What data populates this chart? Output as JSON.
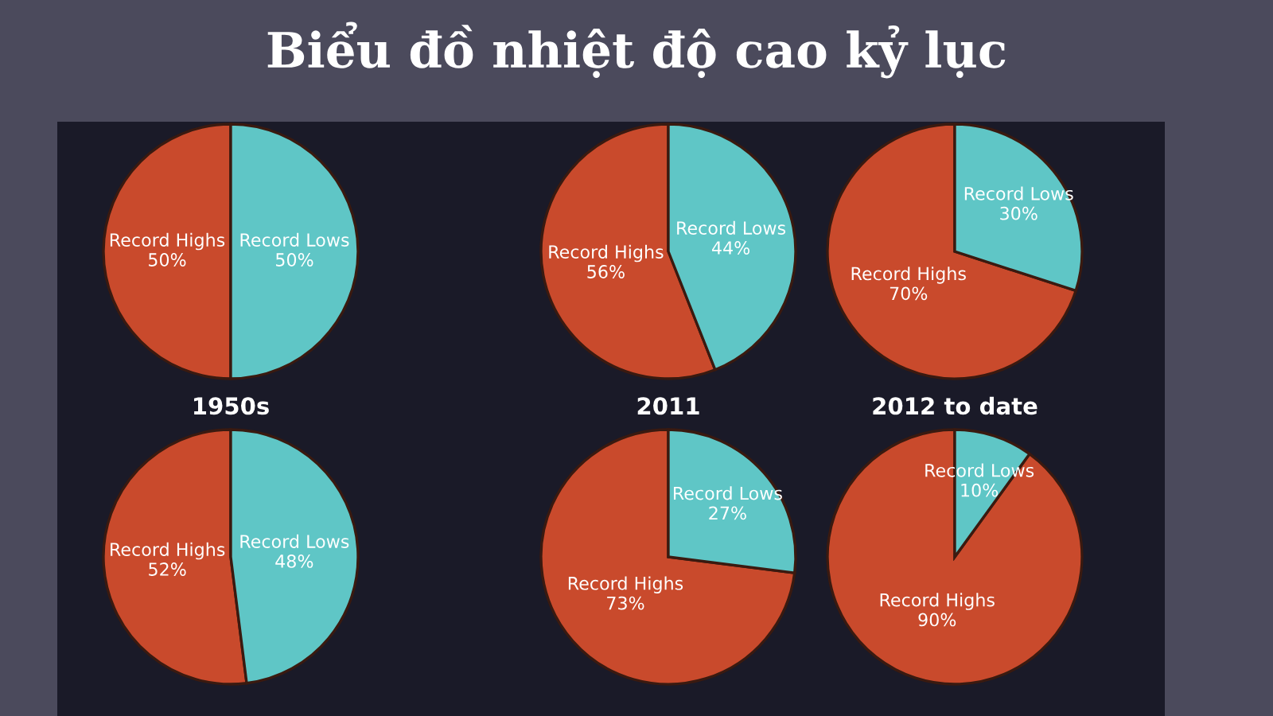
{
  "chart_data": [
    {
      "type": "pie",
      "title": "Biểu đồ nhiệt độ cao kỷ lục",
      "categories": [
        "Record Highs",
        "Record Lows"
      ],
      "values": [
        50,
        50
      ],
      "value_labels": [
        "50%",
        "50%"
      ],
      "colors": [
        "#c94a2c",
        "#5fc6c6"
      ]
    },
    {
      "type": "pie",
      "categories": [
        "Record Highs",
        "Record Lows"
      ],
      "values": [
        56,
        44
      ],
      "value_labels": [
        "56%",
        "44%"
      ],
      "colors": [
        "#c94a2c",
        "#5fc6c6"
      ]
    },
    {
      "type": "pie",
      "categories": [
        "Record Highs",
        "Record Lows"
      ],
      "values": [
        70,
        30
      ],
      "value_labels": [
        "70%",
        "30%"
      ],
      "colors": [
        "#c94a2c",
        "#5fc6c6"
      ]
    },
    {
      "type": "pie",
      "title": "1950s",
      "categories": [
        "Record Highs",
        "Record Lows"
      ],
      "values": [
        52,
        48
      ],
      "value_labels": [
        "52%",
        "48%"
      ],
      "colors": [
        "#c94a2c",
        "#5fc6c6"
      ]
    },
    {
      "type": "pie",
      "title": "2011",
      "categories": [
        "Record Highs",
        "Record Lows"
      ],
      "values": [
        73,
        27
      ],
      "value_labels": [
        "73%",
        "27%"
      ],
      "colors": [
        "#c94a2c",
        "#5fc6c6"
      ]
    },
    {
      "type": "pie",
      "title": "2012 to date",
      "categories": [
        "Record Highs",
        "Record Lows"
      ],
      "values": [
        90,
        10
      ],
      "value_labels": [
        "90%",
        "10%"
      ],
      "colors": [
        "#c94a2c",
        "#5fc6c6"
      ]
    }
  ]
}
